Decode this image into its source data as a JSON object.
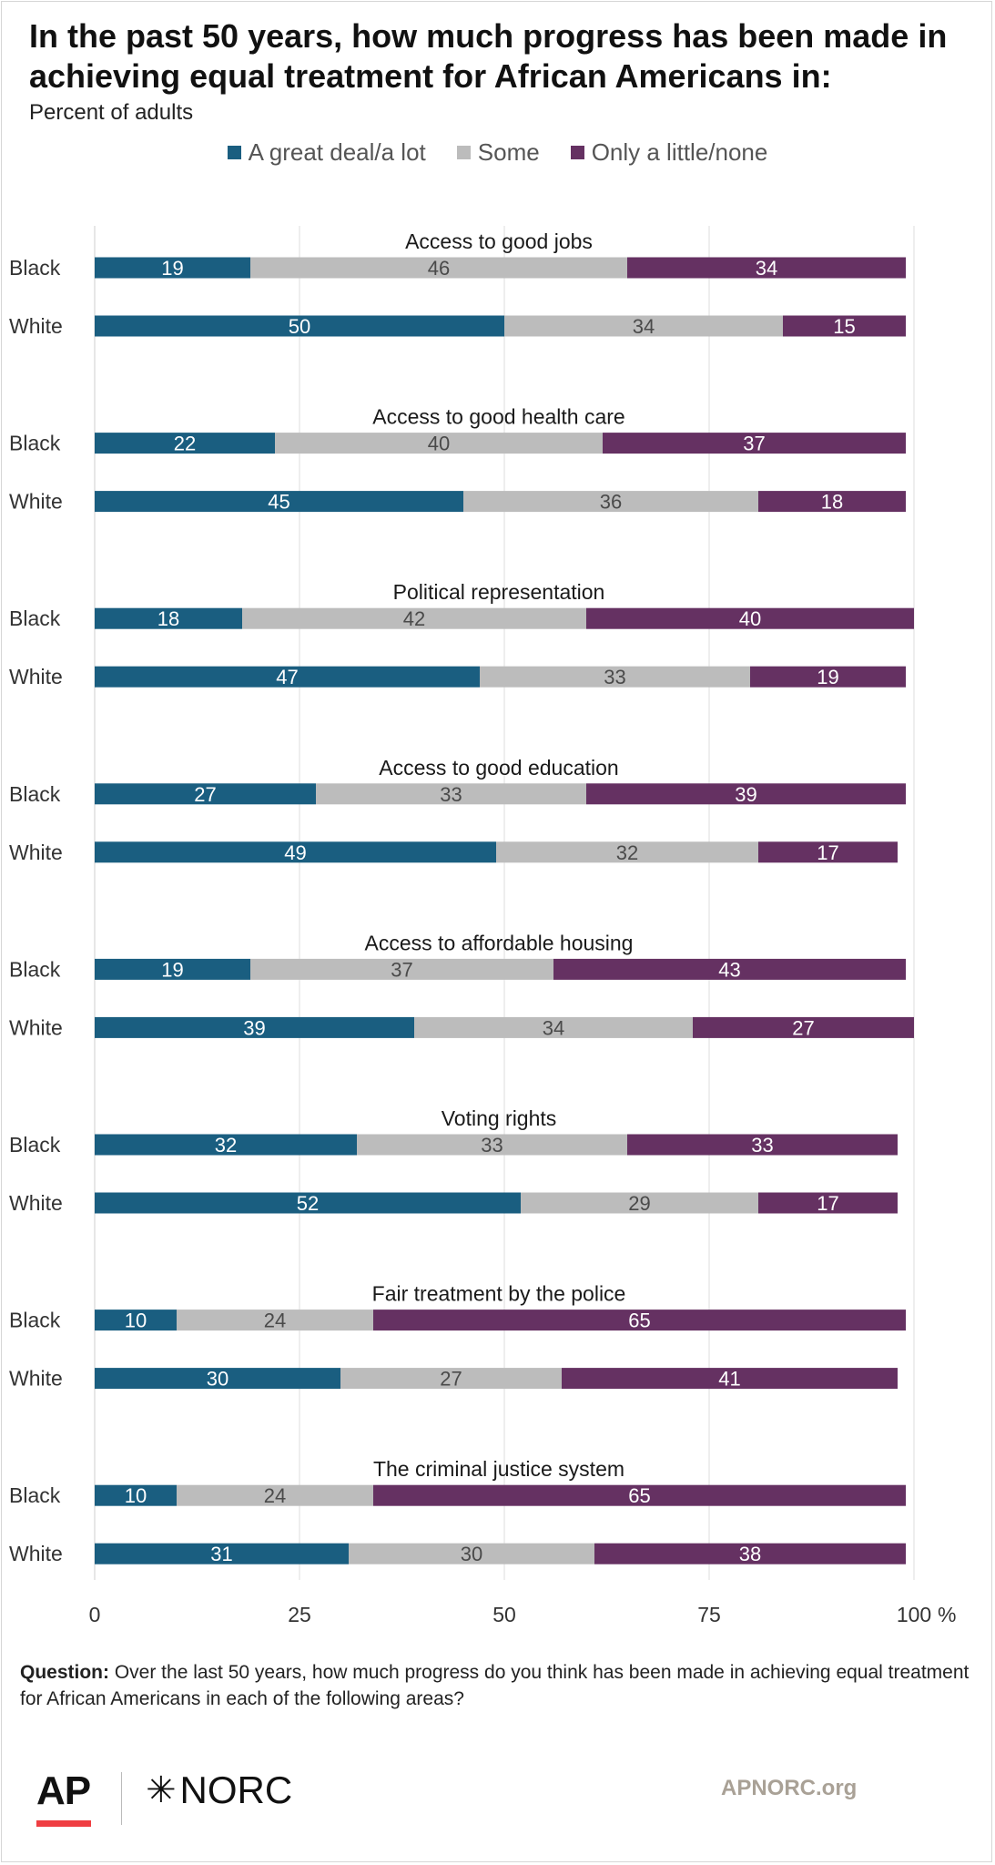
{
  "title": "In the past 50 years, how much progress has been made in achieving equal treatment for African Americans in:",
  "subtitle": "Percent of adults",
  "legend": [
    {
      "label": "A great deal/a lot",
      "color": "#1a5e80"
    },
    {
      "label": "Some",
      "color": "#bcbcbc"
    },
    {
      "label": "Only a little/none",
      "color": "#653162"
    }
  ],
  "chart_data": {
    "type": "bar",
    "orientation": "horizontal",
    "stacked": true,
    "xlim": [
      0,
      100
    ],
    "x_ticks": [
      0,
      25,
      50,
      75,
      100
    ],
    "x_unit": "%",
    "grid": true,
    "legend_position": "top",
    "groups": [
      {
        "label": "Access to good jobs",
        "rows": [
          {
            "label": "Black",
            "values": [
              19,
              46,
              34
            ]
          },
          {
            "label": "White",
            "values": [
              50,
              34,
              15
            ]
          }
        ]
      },
      {
        "label": "Access to good health care",
        "rows": [
          {
            "label": "Black",
            "values": [
              22,
              40,
              37
            ]
          },
          {
            "label": "White",
            "values": [
              45,
              36,
              18
            ]
          }
        ]
      },
      {
        "label": "Political representation",
        "rows": [
          {
            "label": "Black",
            "values": [
              18,
              42,
              40
            ]
          },
          {
            "label": "White",
            "values": [
              47,
              33,
              19
            ]
          }
        ]
      },
      {
        "label": "Access to good education",
        "rows": [
          {
            "label": "Black",
            "values": [
              27,
              33,
              39
            ]
          },
          {
            "label": "White",
            "values": [
              49,
              32,
              17
            ]
          }
        ]
      },
      {
        "label": "Access to affordable housing",
        "rows": [
          {
            "label": "Black",
            "values": [
              19,
              37,
              43
            ]
          },
          {
            "label": "White",
            "values": [
              39,
              34,
              27
            ]
          }
        ]
      },
      {
        "label": "Voting rights",
        "rows": [
          {
            "label": "Black",
            "values": [
              32,
              33,
              33
            ]
          },
          {
            "label": "White",
            "values": [
              52,
              29,
              17
            ]
          }
        ]
      },
      {
        "label": "Fair treatment by the police",
        "rows": [
          {
            "label": "Black",
            "values": [
              10,
              24,
              65
            ]
          },
          {
            "label": "White",
            "values": [
              30,
              27,
              41
            ]
          }
        ]
      },
      {
        "label": "The criminal justice system",
        "rows": [
          {
            "label": "Black",
            "values": [
              10,
              24,
              65
            ]
          },
          {
            "label": "White",
            "values": [
              31,
              30,
              38
            ]
          }
        ]
      }
    ]
  },
  "footer": {
    "question_label": "Question:",
    "question_text": " Over the last 50 years, how much progress do you think has been made in achieving equal treatment for African Americans in each of the following areas?",
    "ap_logo": "AP",
    "norc_logo": "NORC",
    "norc_icon": "asterisk-star-icon",
    "site": "APNORC.org"
  }
}
